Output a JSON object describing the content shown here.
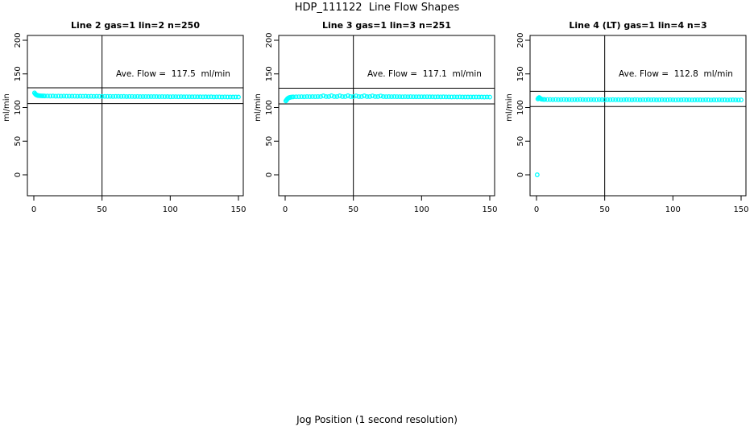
{
  "title": "HDP_111122  Line Flow Shapes",
  "xlabel": "Jog Position (1 second resolution)",
  "colors": {
    "point": "#00ffff",
    "axis": "#000000",
    "background": "#ffffff"
  },
  "chart_data": [
    {
      "type": "scatter",
      "title": "Line 2 gas=1 lin=2 n=250",
      "annotation": "Ave. Flow =  117.5  ml/min",
      "ave_flow": 117.5,
      "ylabel": "ml/min",
      "xticks": [
        0,
        50,
        100,
        150
      ],
      "yticks": [
        0,
        50,
        100,
        150,
        200
      ],
      "xlim": [
        -5,
        154
      ],
      "ylim": [
        -31,
        207
      ],
      "vline_x": 50,
      "hlines": [
        129.3,
        105.8
      ],
      "points": [
        [
          0.5,
          121.8
        ],
        [
          1,
          120.3
        ],
        [
          1.5,
          119.3
        ],
        [
          2,
          118.7
        ],
        [
          2.5,
          118.2
        ],
        [
          3,
          117.9
        ],
        [
          3.5,
          117.7
        ],
        [
          4,
          117.6
        ],
        [
          5,
          117.4
        ],
        [
          6,
          117.3
        ],
        [
          7,
          117.3
        ],
        [
          8,
          117.2
        ],
        [
          10,
          117.1
        ],
        [
          12,
          117.0
        ],
        [
          14,
          117.1
        ],
        [
          16,
          116.9
        ],
        [
          18,
          117.0
        ],
        [
          20,
          116.9
        ],
        [
          22,
          117.0
        ],
        [
          24,
          116.8
        ],
        [
          26,
          116.9
        ],
        [
          28,
          116.8
        ],
        [
          30,
          116.9
        ],
        [
          32,
          116.7
        ],
        [
          34,
          116.8
        ],
        [
          36,
          116.7
        ],
        [
          38,
          116.8
        ],
        [
          40,
          116.6
        ],
        [
          42,
          116.7
        ],
        [
          44,
          116.6
        ],
        [
          46,
          116.7
        ],
        [
          48,
          116.5
        ],
        [
          50,
          116.6
        ],
        [
          52,
          116.6
        ],
        [
          54,
          116.5
        ],
        [
          56,
          116.6
        ],
        [
          58,
          116.4
        ],
        [
          60,
          116.5
        ],
        [
          62,
          116.5
        ],
        [
          64,
          116.4
        ],
        [
          66,
          116.5
        ],
        [
          68,
          116.3
        ],
        [
          70,
          116.4
        ],
        [
          72,
          116.4
        ],
        [
          74,
          116.3
        ],
        [
          76,
          116.4
        ],
        [
          78,
          116.2
        ],
        [
          80,
          116.3
        ],
        [
          82,
          116.3
        ],
        [
          84,
          116.2
        ],
        [
          86,
          116.3
        ],
        [
          88,
          116.2
        ],
        [
          90,
          116.2
        ],
        [
          92,
          116.1
        ],
        [
          94,
          116.2
        ],
        [
          96,
          116.1
        ],
        [
          98,
          116.2
        ],
        [
          100,
          116.0
        ],
        [
          102,
          116.1
        ],
        [
          104,
          116.1
        ],
        [
          106,
          116.0
        ],
        [
          108,
          116.1
        ],
        [
          110,
          115.9
        ],
        [
          112,
          116.0
        ],
        [
          114,
          116.0
        ],
        [
          116,
          115.9
        ],
        [
          118,
          116.0
        ],
        [
          120,
          115.9
        ],
        [
          122,
          115.9
        ],
        [
          124,
          115.8
        ],
        [
          126,
          115.9
        ],
        [
          128,
          115.8
        ],
        [
          130,
          115.9
        ],
        [
          132,
          115.7
        ],
        [
          134,
          115.8
        ],
        [
          136,
          115.8
        ],
        [
          138,
          115.7
        ],
        [
          140,
          115.8
        ],
        [
          142,
          115.7
        ],
        [
          144,
          115.7
        ],
        [
          146,
          115.6
        ],
        [
          148,
          115.7
        ],
        [
          150,
          115.6
        ]
      ]
    },
    {
      "type": "scatter",
      "title": "Line 3 gas=1 lin=3 n=251",
      "annotation": "Ave. Flow =  117.1  ml/min",
      "ave_flow": 117.1,
      "ylabel": "ml/min",
      "xticks": [
        0,
        50,
        100,
        150
      ],
      "yticks": [
        0,
        50,
        100,
        150,
        200
      ],
      "xlim": [
        -5,
        154
      ],
      "ylim": [
        -31,
        207
      ],
      "vline_x": 50,
      "hlines": [
        128.8,
        105.4
      ],
      "points": [
        [
          0.5,
          109.8
        ],
        [
          1,
          111.2
        ],
        [
          1.5,
          112.6
        ],
        [
          2,
          113.6
        ],
        [
          2.5,
          114.3
        ],
        [
          3,
          114.8
        ],
        [
          3.5,
          115.1
        ],
        [
          4,
          115.4
        ],
        [
          5,
          115.6
        ],
        [
          6,
          115.8
        ],
        [
          8,
          115.9
        ],
        [
          10,
          116.0
        ],
        [
          12,
          116.1
        ],
        [
          14,
          116.0
        ],
        [
          16,
          116.2
        ],
        [
          18,
          116.1
        ],
        [
          20,
          116.2
        ],
        [
          22,
          116.1
        ],
        [
          24,
          116.3
        ],
        [
          26,
          116.2
        ],
        [
          28,
          117.4
        ],
        [
          30,
          116.2
        ],
        [
          32,
          116.3
        ],
        [
          34,
          117.5
        ],
        [
          36,
          116.2
        ],
        [
          38,
          116.3
        ],
        [
          40,
          117.4
        ],
        [
          42,
          116.3
        ],
        [
          44,
          116.2
        ],
        [
          46,
          117.5
        ],
        [
          48,
          116.3
        ],
        [
          50,
          116.2
        ],
        [
          52,
          117.3
        ],
        [
          54,
          116.3
        ],
        [
          56,
          116.2
        ],
        [
          58,
          117.4
        ],
        [
          60,
          116.2
        ],
        [
          62,
          116.3
        ],
        [
          64,
          117.3
        ],
        [
          66,
          116.2
        ],
        [
          68,
          116.2
        ],
        [
          70,
          117.2
        ],
        [
          72,
          116.2
        ],
        [
          74,
          116.1
        ],
        [
          76,
          116.2
        ],
        [
          78,
          116.1
        ],
        [
          80,
          116.2
        ],
        [
          82,
          116.1
        ],
        [
          84,
          116.1
        ],
        [
          86,
          116.0
        ],
        [
          88,
          116.1
        ],
        [
          90,
          116.0
        ],
        [
          92,
          116.1
        ],
        [
          94,
          116.0
        ],
        [
          96,
          116.0
        ],
        [
          98,
          115.9
        ],
        [
          100,
          116.0
        ],
        [
          102,
          115.9
        ],
        [
          104,
          116.0
        ],
        [
          106,
          115.9
        ],
        [
          108,
          115.9
        ],
        [
          110,
          115.8
        ],
        [
          112,
          115.9
        ],
        [
          114,
          115.8
        ],
        [
          116,
          115.9
        ],
        [
          118,
          115.8
        ],
        [
          120,
          115.8
        ],
        [
          122,
          115.7
        ],
        [
          124,
          115.8
        ],
        [
          126,
          115.7
        ],
        [
          128,
          115.8
        ],
        [
          130,
          115.7
        ],
        [
          132,
          115.7
        ],
        [
          134,
          115.6
        ],
        [
          136,
          115.7
        ],
        [
          138,
          115.6
        ],
        [
          140,
          115.7
        ],
        [
          142,
          115.6
        ],
        [
          144,
          115.6
        ],
        [
          146,
          115.5
        ],
        [
          148,
          115.6
        ],
        [
          150,
          115.5
        ]
      ]
    },
    {
      "type": "scatter",
      "title": "Line 4 (LT) gas=1 lin=4 n=3",
      "annotation": "Ave. Flow =  112.8  ml/min",
      "ave_flow": 112.8,
      "ylabel": "ml/min",
      "xticks": [
        0,
        50,
        100,
        150
      ],
      "yticks": [
        0,
        50,
        100,
        150,
        200
      ],
      "xlim": [
        -5,
        154
      ],
      "ylim": [
        -31,
        207
      ],
      "vline_x": 50,
      "hlines": [
        124.1,
        101.5
      ],
      "points": [
        [
          0.5,
          0
        ],
        [
          1,
          112.8
        ],
        [
          1.5,
          114.2
        ],
        [
          2,
          114.9
        ],
        [
          2.5,
          114.0
        ],
        [
          3,
          113.2
        ],
        [
          3.5,
          112.6
        ],
        [
          4,
          112.3
        ],
        [
          5,
          112.1
        ],
        [
          6,
          112.0
        ],
        [
          8,
          111.9
        ],
        [
          10,
          111.9
        ],
        [
          12,
          111.8
        ],
        [
          14,
          111.9
        ],
        [
          16,
          111.7
        ],
        [
          18,
          111.8
        ],
        [
          20,
          111.9
        ],
        [
          22,
          111.7
        ],
        [
          24,
          111.8
        ],
        [
          26,
          111.6
        ],
        [
          28,
          111.8
        ],
        [
          30,
          111.7
        ],
        [
          32,
          111.9
        ],
        [
          34,
          111.8
        ],
        [
          36,
          111.6
        ],
        [
          38,
          111.7
        ],
        [
          40,
          111.8
        ],
        [
          42,
          111.7
        ],
        [
          44,
          111.6
        ],
        [
          46,
          111.8
        ],
        [
          48,
          111.7
        ],
        [
          50,
          111.5
        ],
        [
          52,
          111.7
        ],
        [
          54,
          111.6
        ],
        [
          56,
          111.8
        ],
        [
          58,
          111.6
        ],
        [
          60,
          111.7
        ],
        [
          62,
          111.5
        ],
        [
          64,
          111.6
        ],
        [
          66,
          111.7
        ],
        [
          68,
          111.6
        ],
        [
          70,
          111.5
        ],
        [
          72,
          111.7
        ],
        [
          74,
          111.6
        ],
        [
          76,
          111.4
        ],
        [
          78,
          111.6
        ],
        [
          80,
          111.5
        ],
        [
          82,
          111.7
        ],
        [
          84,
          111.5
        ],
        [
          86,
          111.6
        ],
        [
          88,
          111.4
        ],
        [
          90,
          111.5
        ],
        [
          92,
          111.6
        ],
        [
          94,
          111.5
        ],
        [
          96,
          111.4
        ],
        [
          98,
          111.6
        ],
        [
          100,
          111.5
        ],
        [
          102,
          111.3
        ],
        [
          104,
          111.5
        ],
        [
          106,
          111.4
        ],
        [
          108,
          111.6
        ],
        [
          110,
          111.4
        ],
        [
          112,
          111.5
        ],
        [
          114,
          111.3
        ],
        [
          116,
          111.4
        ],
        [
          118,
          111.5
        ],
        [
          120,
          111.4
        ],
        [
          122,
          111.3
        ],
        [
          124,
          111.5
        ],
        [
          126,
          111.4
        ],
        [
          128,
          111.2
        ],
        [
          130,
          111.4
        ],
        [
          132,
          111.3
        ],
        [
          134,
          111.5
        ],
        [
          136,
          111.3
        ],
        [
          138,
          111.4
        ],
        [
          140,
          111.2
        ],
        [
          142,
          111.3
        ],
        [
          144,
          111.4
        ],
        [
          146,
          111.3
        ],
        [
          148,
          111.2
        ],
        [
          150,
          111.3
        ]
      ]
    }
  ]
}
